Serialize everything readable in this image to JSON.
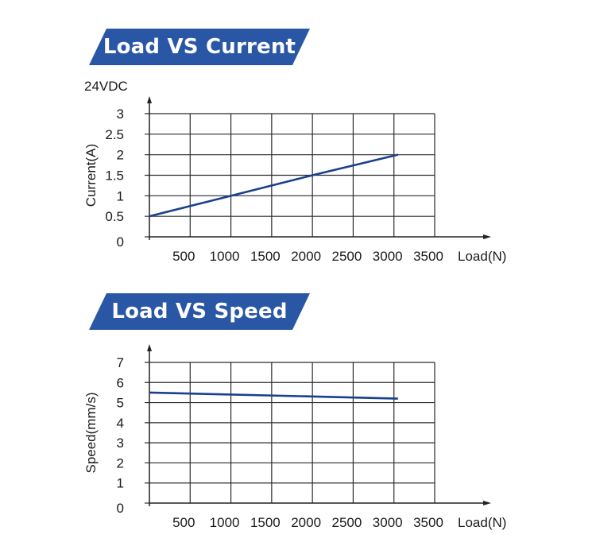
{
  "banners": {
    "current": "Load VS Current",
    "speed": "Load VS Speed"
  },
  "colors": {
    "banner": "#2a57a5",
    "series": "#1a3f8f",
    "grid": "#2b2b2b"
  },
  "chart_data": [
    {
      "type": "line",
      "title": "Load VS Current",
      "subtitle": "24VDC",
      "xlabel": "Load(N)",
      "ylabel": "Current(A)",
      "xlim": [
        0,
        3500
      ],
      "ylim": [
        0,
        3
      ],
      "x_ticks": [
        500,
        1000,
        1500,
        2000,
        2500,
        3000,
        3500
      ],
      "x_tick_labels": [
        "500",
        "1000",
        "1500",
        "2000",
        "2500",
        "3000",
        "3500"
      ],
      "y_ticks": [
        0,
        0.5,
        1,
        1.5,
        2,
        2.5,
        3
      ],
      "y_tick_labels": [
        "0",
        "0.5",
        "1",
        "1.5",
        "2",
        "2.5",
        "3"
      ],
      "grid": true,
      "legend": "none",
      "series": [
        {
          "x": [
            0,
            1000,
            2000,
            3050
          ],
          "y": [
            0.5,
            1.0,
            1.5,
            2.0
          ]
        }
      ]
    },
    {
      "type": "line",
      "title": "Load VS Speed",
      "xlabel": "Load(N)",
      "ylabel": "Speed(mm/s)",
      "xlim": [
        0,
        3500
      ],
      "ylim": [
        0,
        7
      ],
      "x_ticks": [
        500,
        1000,
        1500,
        2000,
        2500,
        3000,
        3500
      ],
      "x_tick_labels": [
        "500",
        "1000",
        "1500",
        "2000",
        "2500",
        "3000",
        "3500"
      ],
      "y_ticks": [
        0,
        1,
        2,
        3,
        4,
        5,
        6,
        7
      ],
      "y_tick_labels": [
        "0",
        "1",
        "2",
        "3",
        "4",
        "5",
        "6",
        "7"
      ],
      "grid": true,
      "legend": "none",
      "series": [
        {
          "x": [
            0,
            3050
          ],
          "y": [
            5.5,
            5.2
          ]
        }
      ]
    }
  ]
}
